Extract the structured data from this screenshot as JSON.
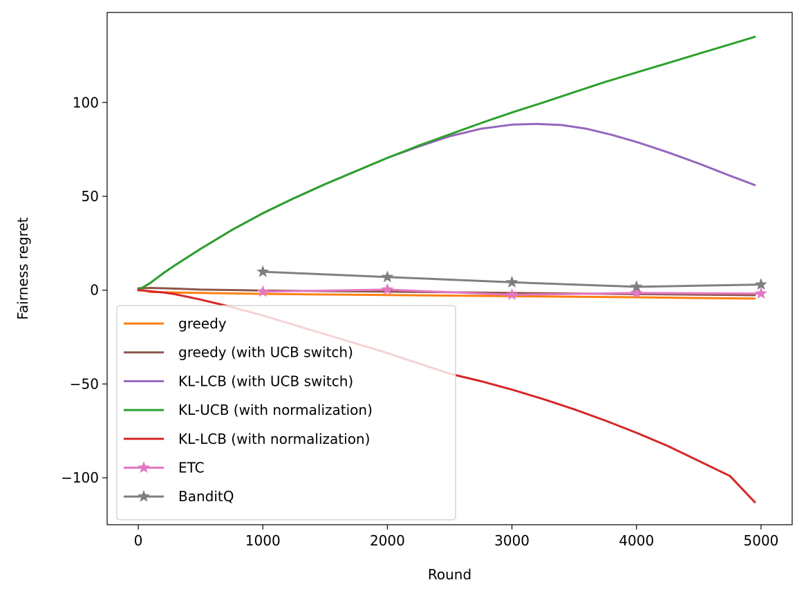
{
  "chart_data": {
    "type": "line",
    "title": "",
    "xlabel": "Round",
    "ylabel": "Fairness regret",
    "xlim": [
      -250,
      5250
    ],
    "ylim": [
      -125,
      148
    ],
    "xticks": [
      0,
      1000,
      2000,
      3000,
      4000,
      5000
    ],
    "yticks": [
      -100,
      -50,
      0,
      50,
      100
    ],
    "xtick_labels": [
      "0",
      "1000",
      "2000",
      "3000",
      "4000",
      "5000"
    ],
    "ytick_labels": [
      "−100",
      "−50",
      "0",
      "50",
      "100"
    ],
    "grid": false,
    "legend_position": "lower-left",
    "series": [
      {
        "name": "greedy",
        "color": "#ff7f0e",
        "marker": "none",
        "x": [
          0,
          100,
          500,
          1000,
          1500,
          2000,
          2500,
          3000,
          3500,
          4000,
          4500,
          4950
        ],
        "y": [
          0.5,
          -1.0,
          -1.5,
          -2.0,
          -2.3,
          -2.6,
          -2.9,
          -3.2,
          -3.5,
          -3.8,
          -4.2,
          -4.5
        ]
      },
      {
        "name": "greedy (with UCB switch)",
        "color": "#8c564b",
        "marker": "none",
        "x": [
          0,
          100,
          300,
          500,
          1000,
          1500,
          2000,
          2500,
          3000,
          3500,
          4000,
          4500,
          4950
        ],
        "y": [
          1.0,
          1.2,
          0.8,
          0.3,
          -0.2,
          -0.5,
          -0.8,
          -1.1,
          -1.5,
          -1.8,
          -2.1,
          -2.4,
          -2.7
        ]
      },
      {
        "name": "KL-LCB (with UCB switch)",
        "color": "#9467bd",
        "marker": "none",
        "x": [
          0,
          50,
          100,
          200,
          300,
          500,
          750,
          1000,
          1250,
          1500,
          1750,
          2000,
          2250,
          2500,
          2750,
          3000,
          3200,
          3400,
          3600,
          3800,
          4000,
          4250,
          4500,
          4750,
          4950
        ],
        "y": [
          0,
          2,
          4,
          9,
          13.5,
          22,
          32,
          41,
          49,
          56.5,
          63.5,
          70.5,
          76.5,
          82,
          86,
          88.2,
          88.6,
          88,
          86,
          82.8,
          79,
          73.5,
          67.5,
          61,
          56
        ]
      },
      {
        "name": "KL-UCB (with normalization)",
        "color": "#2ca02c",
        "marker": "none",
        "x": [
          0,
          50,
          100,
          200,
          300,
          500,
          750,
          1000,
          1250,
          1500,
          1750,
          2000,
          2250,
          2500,
          2750,
          3000,
          3250,
          3500,
          3750,
          4000,
          4250,
          4500,
          4750,
          4950
        ],
        "y": [
          0,
          2,
          4,
          9,
          13.5,
          22,
          32,
          41,
          49,
          56.5,
          63.5,
          70.5,
          77,
          83,
          89,
          94.7,
          100,
          105.5,
          111,
          116,
          121,
          126,
          131,
          135
        ]
      },
      {
        "name": "KL-LCB (with normalization)",
        "color": "#d62728",
        "marker": "none",
        "x": [
          0,
          50,
          100,
          200,
          300,
          500,
          750,
          1000,
          1250,
          1500,
          1750,
          2000,
          2250,
          2500,
          2750,
          3000,
          3250,
          3500,
          3750,
          4000,
          4250,
          4500,
          4750,
          4950
        ],
        "y": [
          0,
          -0.3,
          -0.6,
          -1.2,
          -2.2,
          -5,
          -9,
          -13.5,
          -18.5,
          -23.5,
          -28.5,
          -33.5,
          -39,
          -44.5,
          -48.5,
          -53,
          -58,
          -63.5,
          -69.5,
          -76,
          -83,
          -91,
          -99,
          -113
        ]
      },
      {
        "name": "ETC",
        "color": "#e377c2",
        "marker": "star",
        "x": [
          1000,
          2000,
          3000,
          4000,
          5000
        ],
        "y": [
          -0.8,
          0.3,
          -2.5,
          -1.5,
          -1.8
        ]
      },
      {
        "name": "BanditQ",
        "color": "#7f7f7f",
        "marker": "star",
        "x": [
          1000,
          2000,
          3000,
          4000,
          5000
        ],
        "y": [
          9.8,
          7.0,
          4.2,
          1.8,
          3.0
        ]
      }
    ]
  }
}
